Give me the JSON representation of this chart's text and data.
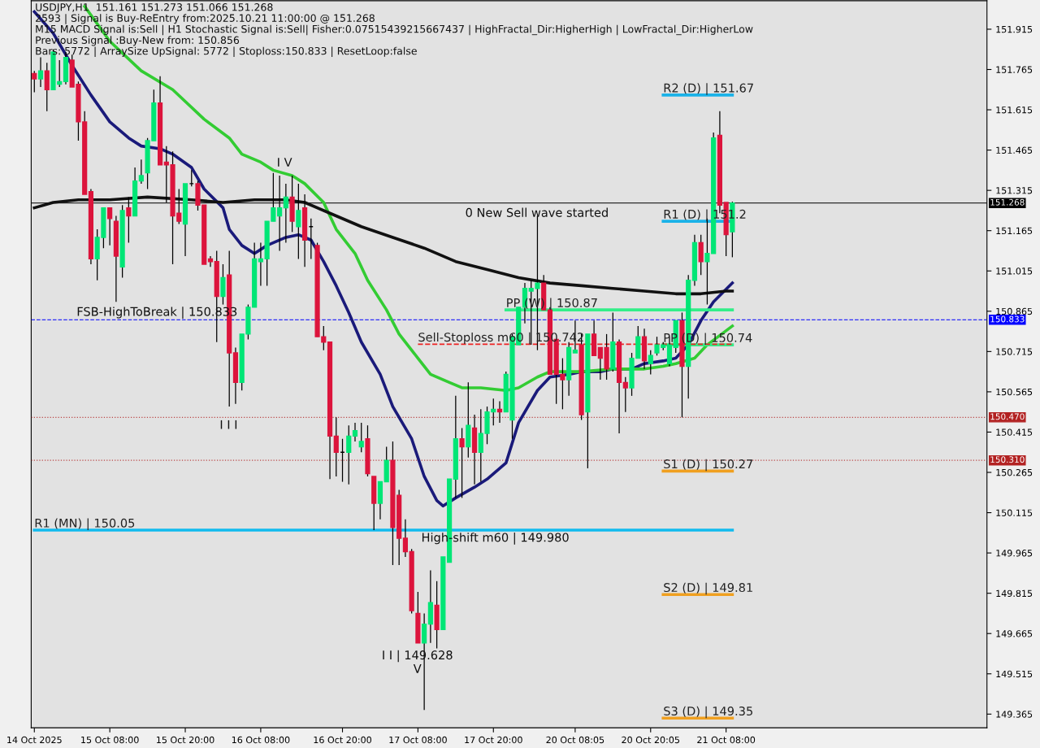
{
  "chart_data": {
    "type": "candlestick",
    "categories": [
      "14 Oct 2025",
      null,
      null,
      null,
      null,
      null,
      null,
      null,
      null,
      null,
      null,
      null,
      "15 Oct 08:00",
      null,
      null,
      null,
      null,
      null,
      null,
      null,
      null,
      null,
      null,
      null,
      "15 Oct 20:00",
      null,
      null,
      null,
      null,
      null,
      null,
      null,
      null,
      null,
      null,
      null,
      "16 Oct 08:00",
      null,
      null,
      null,
      null,
      null,
      null,
      null,
      null,
      null,
      null,
      null,
      null,
      "16 Oct 20:00",
      null,
      null,
      null,
      null,
      null,
      null,
      null,
      null,
      null,
      null,
      null,
      "17 Oct 08:00",
      null,
      null,
      null,
      null,
      null,
      null,
      null,
      null,
      null,
      null,
      null,
      "17 Oct 20:00",
      null,
      null,
      null,
      null,
      null,
      null,
      null,
      null,
      null,
      null,
      null,
      null,
      "20 Oct 08:05",
      null,
      null,
      null,
      null,
      null,
      null,
      null,
      null,
      null,
      null,
      null,
      "20 Oct 20:05",
      null,
      null,
      null,
      null,
      null,
      null,
      null,
      null,
      null,
      null,
      null,
      "21 Oct 08:00",
      null
    ],
    "ohlc": [
      [
        151.75,
        151.76,
        151.68,
        151.73
      ],
      [
        151.73,
        151.81,
        151.7,
        151.76
      ],
      [
        151.76,
        151.79,
        151.61,
        151.69
      ],
      [
        151.69,
        151.84,
        151.69,
        151.83
      ],
      [
        151.71,
        151.8,
        151.7,
        151.72
      ],
      [
        151.72,
        151.83,
        151.71,
        151.81
      ],
      [
        151.8,
        151.82,
        151.7,
        151.7
      ],
      [
        151.71,
        151.72,
        151.5,
        151.57
      ],
      [
        151.57,
        151.61,
        151.3,
        151.3
      ],
      [
        151.31,
        151.32,
        151.04,
        151.06
      ],
      [
        151.06,
        151.17,
        150.98,
        151.14
      ],
      [
        151.14,
        151.25,
        151.1,
        151.25
      ],
      [
        151.25,
        151.25,
        151.11,
        151.21
      ],
      [
        151.2,
        151.22,
        150.9,
        151.07
      ],
      [
        151.03,
        151.26,
        150.99,
        151.24
      ],
      [
        151.25,
        151.29,
        151.12,
        151.22
      ],
      [
        151.22,
        151.4,
        151.22,
        151.35
      ],
      [
        151.35,
        151.43,
        151.34,
        151.37
      ],
      [
        151.38,
        151.51,
        151.32,
        151.5
      ],
      [
        151.5,
        151.69,
        151.5,
        151.64
      ],
      [
        151.64,
        151.74,
        151.41,
        151.41
      ],
      [
        151.42,
        151.48,
        151.27,
        151.41
      ],
      [
        151.41,
        151.46,
        151.04,
        151.22
      ],
      [
        151.23,
        151.32,
        151.19,
        151.2
      ],
      [
        151.19,
        151.34,
        151.07,
        151.34
      ],
      [
        151.34,
        151.39,
        151.33,
        151.34
      ],
      [
        151.34,
        151.35,
        151.24,
        151.26
      ],
      [
        151.26,
        151.26,
        151.04,
        151.04
      ],
      [
        151.06,
        151.07,
        151.03,
        151.05
      ],
      [
        151.05,
        151.09,
        150.75,
        150.92
      ],
      [
        150.92,
        151.04,
        150.89,
        150.99
      ],
      [
        151.0,
        151.09,
        150.51,
        150.71
      ],
      [
        150.71,
        150.73,
        150.52,
        150.6
      ],
      [
        150.6,
        150.78,
        150.57,
        150.78
      ],
      [
        150.78,
        150.89,
        150.76,
        150.88
      ],
      [
        150.88,
        151.12,
        150.88,
        151.06
      ],
      [
        151.05,
        151.12,
        150.96,
        151.06
      ],
      [
        151.06,
        151.2,
        150.96,
        151.2
      ],
      [
        151.2,
        151.38,
        151.2,
        151.25
      ],
      [
        151.22,
        151.37,
        151.09,
        151.25
      ],
      [
        151.25,
        151.34,
        151.12,
        151.29
      ],
      [
        151.29,
        151.37,
        151.16,
        151.2
      ],
      [
        151.18,
        151.34,
        151.06,
        151.24
      ],
      [
        151.25,
        151.3,
        151.03,
        151.13
      ],
      [
        151.18,
        151.21,
        151.06,
        151.18
      ],
      [
        151.11,
        151.12,
        150.77,
        150.77
      ],
      [
        150.77,
        150.81,
        150.72,
        150.75
      ],
      [
        150.75,
        150.75,
        150.24,
        150.4
      ],
      [
        150.4,
        150.47,
        150.25,
        150.34
      ],
      [
        150.34,
        150.39,
        150.23,
        150.34
      ],
      [
        150.34,
        150.44,
        150.22,
        150.4
      ],
      [
        150.4,
        150.45,
        150.38,
        150.42
      ],
      [
        150.36,
        150.45,
        150.34,
        150.38
      ],
      [
        150.39,
        150.44,
        150.25,
        150.26
      ],
      [
        150.25,
        150.25,
        150.05,
        150.15
      ],
      [
        150.15,
        150.23,
        150.09,
        150.23
      ],
      [
        150.23,
        150.36,
        150.23,
        150.31
      ],
      [
        150.31,
        150.38,
        149.92,
        150.06
      ],
      [
        150.18,
        150.2,
        149.92,
        150.02
      ],
      [
        150.02,
        150.09,
        149.95,
        149.97
      ],
      [
        149.97,
        149.98,
        149.74,
        149.75
      ],
      [
        149.74,
        149.82,
        149.63,
        149.63
      ],
      [
        149.63,
        149.74,
        149.38,
        149.7
      ],
      [
        149.7,
        149.9,
        149.63,
        149.78
      ],
      [
        149.77,
        149.86,
        149.61,
        149.68
      ],
      [
        149.68,
        149.95,
        149.68,
        149.95
      ],
      [
        149.93,
        150.24,
        149.93,
        150.24
      ],
      [
        150.24,
        150.55,
        150.17,
        150.39
      ],
      [
        150.39,
        150.43,
        150.17,
        150.36
      ],
      [
        150.36,
        150.6,
        150.32,
        150.44
      ],
      [
        150.43,
        150.48,
        150.22,
        150.34
      ],
      [
        150.34,
        150.5,
        150.23,
        150.41
      ],
      [
        150.41,
        150.51,
        150.37,
        150.49
      ],
      [
        150.49,
        150.54,
        150.44,
        150.5
      ],
      [
        150.5,
        150.53,
        150.45,
        150.49
      ],
      [
        150.49,
        150.64,
        150.49,
        150.63
      ],
      [
        150.46,
        150.78,
        150.39,
        150.77
      ],
      [
        150.74,
        150.88,
        150.74,
        150.88
      ],
      [
        150.88,
        150.97,
        150.82,
        150.95
      ],
      [
        150.94,
        150.98,
        150.74,
        150.95
      ],
      [
        150.95,
        151.22,
        150.72,
        150.97
      ],
      [
        150.97,
        151.0,
        150.87,
        150.87
      ],
      [
        150.87,
        150.88,
        150.63,
        150.63
      ],
      [
        150.76,
        150.76,
        150.52,
        150.63
      ],
      [
        150.63,
        150.69,
        150.5,
        150.61
      ],
      [
        150.61,
        150.75,
        150.55,
        150.73
      ],
      [
        150.71,
        150.83,
        150.71,
        150.72
      ],
      [
        150.74,
        150.78,
        150.46,
        150.48
      ],
      [
        150.49,
        150.78,
        150.28,
        150.78
      ],
      [
        150.78,
        150.83,
        150.7,
        150.7
      ],
      [
        150.73,
        150.73,
        150.61,
        150.69
      ],
      [
        150.73,
        150.78,
        150.61,
        150.65
      ],
      [
        150.65,
        150.86,
        150.64,
        150.75
      ],
      [
        150.75,
        150.76,
        150.41,
        150.6
      ],
      [
        150.6,
        150.62,
        150.49,
        150.58
      ],
      [
        150.58,
        150.71,
        150.55,
        150.69
      ],
      [
        150.69,
        150.81,
        150.69,
        150.77
      ],
      [
        150.77,
        150.8,
        150.65,
        150.68
      ],
      [
        150.67,
        150.72,
        150.63,
        150.7
      ],
      [
        150.71,
        150.77,
        150.7,
        150.74
      ],
      [
        150.73,
        150.75,
        150.72,
        150.74
      ],
      [
        150.67,
        150.77,
        150.66,
        150.74
      ],
      [
        150.73,
        150.83,
        150.71,
        150.83
      ],
      [
        150.83,
        150.86,
        150.47,
        150.66
      ],
      [
        150.66,
        151.0,
        150.54,
        150.98
      ],
      [
        150.98,
        151.15,
        150.96,
        151.12
      ],
      [
        151.12,
        151.15,
        151.0,
        151.05
      ],
      [
        151.05,
        151.21,
        150.89,
        151.08
      ],
      [
        151.08,
        151.53,
        151.08,
        151.51
      ],
      [
        151.52,
        151.61,
        151.23,
        151.26
      ],
      [
        151.27,
        151.27,
        151.07,
        151.15
      ],
      [
        151.161,
        151.273,
        151.066,
        151.268
      ]
    ],
    "colors": [
      "#dc143c",
      "#00e676",
      "#dc143c",
      "#00e676",
      "#00e676",
      "#00e676",
      "#dc143c",
      "#dc143c",
      "#dc143c",
      "#dc143c",
      "#00e676",
      "#00e676",
      "#dc143c",
      "#dc143c",
      "#00e676",
      "#dc143c",
      "#00e676",
      "#00e676",
      "#00e676",
      "#00e676",
      "#dc143c",
      "#dc143c",
      "#dc143c",
      "#dc143c",
      "#00e676",
      "#000000",
      "#dc143c",
      "#dc143c",
      "#dc143c",
      "#dc143c",
      "#00e676",
      "#dc143c",
      "#dc143c",
      "#00e676",
      "#00e676",
      "#00e676",
      "#00e676",
      "#00e676",
      "#00e676",
      "#00e676",
      "#00e676",
      "#dc143c",
      "#00e676",
      "#dc143c",
      "#000000",
      "#dc143c",
      "#dc143c",
      "#dc143c",
      "#dc143c",
      "#000000",
      "#00e676",
      "#00e676",
      "#00e676",
      "#dc143c",
      "#dc143c",
      "#00e676",
      "#00e676",
      "#dc143c",
      "#dc143c",
      "#dc143c",
      "#dc143c",
      "#dc143c",
      "#00e676",
      "#00e676",
      "#dc143c",
      "#00e676",
      "#00e676",
      "#00e676",
      "#dc143c",
      "#00e676",
      "#dc143c",
      "#00e676",
      "#00e676",
      "#00e676",
      "#dc143c",
      "#00e676",
      "#00e676",
      "#00e676",
      "#00e676",
      "#00e676",
      "#00e676",
      "#dc143c",
      "#dc143c",
      "#dc143c",
      "#dc143c",
      "#00e676",
      "#00e676",
      "#dc143c",
      "#00e676",
      "#dc143c",
      "#dc143c",
      "#dc143c",
      "#00e676",
      "#dc143c",
      "#dc143c",
      "#00e676",
      "#00e676",
      "#dc143c",
      "#00e676",
      "#00e676",
      "#00e676",
      "#00e676",
      "#00e676",
      "#dc143c",
      "#00e676",
      "#00e676",
      "#dc143c",
      "#00e676",
      "#00e676",
      "#dc143c",
      "#dc143c",
      "#00e676"
    ],
    "series": [
      {
        "type": "line",
        "color": "#1a1a7a",
        "values": [
          151.98,
          null,
          null,
          151.9,
          null,
          null,
          151.78,
          null,
          null,
          151.67,
          null,
          null,
          151.57,
          null,
          null,
          151.51,
          null,
          151.48,
          null,
          null,
          151.47,
          null,
          151.45,
          null,
          null,
          151.4,
          null,
          151.32,
          null,
          null,
          151.25,
          151.17,
          null,
          151.11,
          null,
          151.08,
          null,
          151.11,
          null,
          null,
          151.14,
          null,
          151.15,
          null,
          151.13,
          null,
          151.05,
          null,
          150.96,
          null,
          150.86,
          null,
          150.75,
          null,
          null,
          150.63,
          null,
          150.51,
          null,
          null,
          150.39,
          null,
          150.25,
          null,
          150.16,
          150.14,
          null,
          150.17,
          null,
          null,
          150.21,
          null,
          150.24,
          null,
          null,
          150.3,
          null,
          150.45,
          null,
          null,
          150.57,
          null,
          150.62,
          null,
          null,
          150.63,
          null,
          150.64,
          null,
          null,
          150.64,
          null,
          150.65,
          null,
          null,
          150.65,
          null,
          150.67,
          null,
          null,
          150.68,
          null,
          150.69,
          null,
          150.74,
          null,
          150.83,
          null,
          150.9,
          null,
          null,
          150.97
        ]
      },
      {
        "type": "line",
        "color": "#33cc33",
        "values": [
          null,
          null,
          null,
          null,
          null,
          null,
          null,
          null,
          152.0,
          null,
          null,
          null,
          151.87,
          null,
          null,
          null,
          null,
          151.76,
          null,
          null,
          null,
          null,
          151.69,
          null,
          null,
          null,
          null,
          151.58,
          null,
          null,
          null,
          151.51,
          null,
          151.45,
          null,
          null,
          151.42,
          null,
          151.39,
          null,
          null,
          151.37,
          null,
          151.34,
          null,
          null,
          151.27,
          null,
          151.17,
          null,
          null,
          151.08,
          null,
          150.98,
          null,
          null,
          150.87,
          null,
          150.78,
          null,
          null,
          150.69,
          null,
          150.63,
          null,
          null,
          150.6,
          null,
          150.58,
          null,
          null,
          150.58,
          null,
          null,
          null,
          150.57,
          null,
          150.58,
          null,
          null,
          150.62,
          null,
          150.64,
          null,
          null,
          null,
          null,
          150.64,
          null,
          null,
          null,
          null,
          150.65,
          null,
          null,
          null,
          null,
          150.65,
          null,
          null,
          150.66,
          null,
          150.67,
          null,
          null,
          150.69,
          null,
          150.74,
          null,
          null,
          null,
          150.81
        ]
      },
      {
        "type": "line",
        "color": "#111111",
        "values": [
          151.25,
          null,
          null,
          151.27,
          null,
          null,
          null,
          151.28,
          null,
          null,
          null,
          null,
          151.28,
          null,
          null,
          null,
          null,
          null,
          151.29,
          null,
          null,
          null,
          null,
          null,
          null,
          151.28,
          null,
          null,
          null,
          null,
          151.27,
          null,
          null,
          null,
          null,
          151.28,
          null,
          null,
          null,
          null,
          151.28,
          null,
          null,
          151.27,
          null,
          null,
          null,
          151.23,
          null,
          null,
          null,
          null,
          151.18,
          null,
          null,
          null,
          null,
          151.14,
          null,
          null,
          null,
          null,
          151.1,
          null,
          null,
          null,
          null,
          151.05,
          null,
          null,
          null,
          null,
          151.02,
          null,
          null,
          null,
          null,
          150.99,
          null,
          null,
          null,
          null,
          150.97,
          null,
          null,
          null,
          null,
          150.96,
          null,
          null,
          null,
          null,
          150.95,
          null,
          null,
          null,
          null,
          150.94,
          null,
          null,
          null,
          null,
          150.93,
          null,
          null,
          null,
          150.93,
          null,
          null,
          null,
          150.94,
          150.94
        ]
      },
      {
        "type": "line",
        "name": "R2 (D) | 151.67",
        "color": "#1ab2e8",
        "values": [
          null,
          null,
          null,
          null,
          null,
          null,
          null,
          null,
          null,
          null,
          null,
          null,
          null,
          null,
          null,
          null,
          null,
          null,
          null,
          null,
          null,
          null,
          null,
          null,
          null,
          null,
          null,
          null,
          null,
          null,
          null,
          null,
          null,
          null,
          null,
          null,
          null,
          null,
          null,
          null,
          null,
          null,
          null,
          null,
          null,
          null,
          null,
          null,
          null,
          null,
          null,
          null,
          null,
          null,
          null,
          null,
          null,
          null,
          null,
          null,
          null,
          null,
          null,
          null,
          null,
          null,
          null,
          null,
          null,
          null,
          null,
          null,
          null,
          null,
          null,
          null,
          null,
          null,
          null,
          null,
          null,
          null,
          null,
          null,
          null,
          null,
          null,
          null,
          null,
          null,
          null,
          null,
          null,
          null,
          null,
          null,
          null,
          null,
          null,
          null,
          151.67,
          151.67,
          151.67,
          151.67,
          151.67,
          151.67,
          151.67,
          151.67,
          151.67,
          151.67,
          151.67,
          151.67
        ]
      },
      {
        "type": "line",
        "name": "R1 (D) | 151.2",
        "color": "#1ab2e8",
        "values": [
          null,
          null,
          null,
          null,
          null,
          null,
          null,
          null,
          null,
          null,
          null,
          null,
          null,
          null,
          null,
          null,
          null,
          null,
          null,
          null,
          null,
          null,
          null,
          null,
          null,
          null,
          null,
          null,
          null,
          null,
          null,
          null,
          null,
          null,
          null,
          null,
          null,
          null,
          null,
          null,
          null,
          null,
          null,
          null,
          null,
          null,
          null,
          null,
          null,
          null,
          null,
          null,
          null,
          null,
          null,
          null,
          null,
          null,
          null,
          null,
          null,
          null,
          null,
          null,
          null,
          null,
          null,
          null,
          null,
          null,
          null,
          null,
          null,
          null,
          null,
          null,
          null,
          null,
          null,
          null,
          null,
          null,
          null,
          null,
          null,
          null,
          null,
          null,
          null,
          null,
          null,
          null,
          null,
          null,
          null,
          null,
          null,
          null,
          null,
          null,
          151.2,
          151.2,
          151.2,
          151.2,
          151.2,
          151.2,
          151.2,
          151.2,
          151.2,
          151.2,
          151.2,
          151.2
        ]
      },
      {
        "type": "line",
        "name": "PP (D) | 150.74",
        "color": "#33ee88",
        "values": [
          null,
          null,
          null,
          null,
          null,
          null,
          null,
          null,
          null,
          null,
          null,
          null,
          null,
          null,
          null,
          null,
          null,
          null,
          null,
          null,
          null,
          null,
          null,
          null,
          null,
          null,
          null,
          null,
          null,
          null,
          null,
          null,
          null,
          null,
          null,
          null,
          null,
          null,
          null,
          null,
          null,
          null,
          null,
          null,
          null,
          null,
          null,
          null,
          null,
          null,
          null,
          null,
          null,
          null,
          null,
          null,
          null,
          null,
          null,
          null,
          null,
          null,
          null,
          null,
          null,
          null,
          null,
          null,
          null,
          null,
          null,
          null,
          null,
          null,
          null,
          null,
          null,
          null,
          null,
          null,
          null,
          null,
          null,
          null,
          null,
          null,
          null,
          null,
          null,
          null,
          null,
          null,
          null,
          null,
          null,
          null,
          null,
          null,
          null,
          null,
          150.74,
          150.74,
          150.74,
          150.74,
          150.74,
          150.74,
          150.74,
          150.74,
          150.74,
          150.74,
          150.74,
          150.74
        ]
      },
      {
        "type": "line",
        "name": "S1 (D) | 150.27",
        "color": "#f0a020",
        "values": [
          null,
          null,
          null,
          null,
          null,
          null,
          null,
          null,
          null,
          null,
          null,
          null,
          null,
          null,
          null,
          null,
          null,
          null,
          null,
          null,
          null,
          null,
          null,
          null,
          null,
          null,
          null,
          null,
          null,
          null,
          null,
          null,
          null,
          null,
          null,
          null,
          null,
          null,
          null,
          null,
          null,
          null,
          null,
          null,
          null,
          null,
          null,
          null,
          null,
          null,
          null,
          null,
          null,
          null,
          null,
          null,
          null,
          null,
          null,
          null,
          null,
          null,
          null,
          null,
          null,
          null,
          null,
          null,
          null,
          null,
          null,
          null,
          null,
          null,
          null,
          null,
          null,
          null,
          null,
          null,
          null,
          null,
          null,
          null,
          null,
          null,
          null,
          null,
          null,
          null,
          null,
          null,
          null,
          null,
          null,
          null,
          null,
          null,
          null,
          null,
          150.27,
          150.27,
          150.27,
          150.27,
          150.27,
          150.27,
          150.27,
          150.27,
          150.27,
          150.27,
          150.27,
          150.27
        ]
      },
      {
        "type": "line",
        "name": "S2 (D) | 149.81",
        "color": "#f0a020",
        "values": [
          null,
          null,
          null,
          null,
          null,
          null,
          null,
          null,
          null,
          null,
          null,
          null,
          null,
          null,
          null,
          null,
          null,
          null,
          null,
          null,
          null,
          null,
          null,
          null,
          null,
          null,
          null,
          null,
          null,
          null,
          null,
          null,
          null,
          null,
          null,
          null,
          null,
          null,
          null,
          null,
          null,
          null,
          null,
          null,
          null,
          null,
          null,
          null,
          null,
          null,
          null,
          null,
          null,
          null,
          null,
          null,
          null,
          null,
          null,
          null,
          null,
          null,
          null,
          null,
          null,
          null,
          null,
          null,
          null,
          null,
          null,
          null,
          null,
          null,
          null,
          null,
          null,
          null,
          null,
          null,
          null,
          null,
          null,
          null,
          null,
          null,
          null,
          null,
          null,
          null,
          null,
          null,
          null,
          null,
          null,
          null,
          null,
          null,
          null,
          null,
          149.81,
          149.81,
          149.81,
          149.81,
          149.81,
          149.81,
          149.81,
          149.81,
          149.81,
          149.81,
          149.81,
          149.81
        ]
      },
      {
        "type": "line",
        "name": "S3 (D) | 149.35",
        "color": "#f0a020",
        "values": [
          null,
          null,
          null,
          null,
          null,
          null,
          null,
          null,
          null,
          null,
          null,
          null,
          null,
          null,
          null,
          null,
          null,
          null,
          null,
          null,
          null,
          null,
          null,
          null,
          null,
          null,
          null,
          null,
          null,
          null,
          null,
          null,
          null,
          null,
          null,
          null,
          null,
          null,
          null,
          null,
          null,
          null,
          null,
          null,
          null,
          null,
          null,
          null,
          null,
          null,
          null,
          null,
          null,
          null,
          null,
          null,
          null,
          null,
          null,
          null,
          null,
          null,
          null,
          null,
          null,
          null,
          null,
          null,
          null,
          null,
          null,
          null,
          null,
          null,
          null,
          null,
          null,
          null,
          null,
          null,
          null,
          null,
          null,
          null,
          null,
          null,
          null,
          null,
          null,
          null,
          null,
          null,
          null,
          null,
          null,
          null,
          null,
          null,
          null,
          null,
          149.35,
          149.35,
          149.35,
          149.35,
          149.35,
          149.35,
          149.35,
          149.35,
          149.35,
          149.35,
          149.35,
          149.35
        ]
      },
      {
        "type": "line",
        "name": "PP (W) | 150.87",
        "color": "#33ee88",
        "values": [
          null,
          null,
          null,
          null,
          null,
          null,
          null,
          null,
          null,
          null,
          null,
          null,
          null,
          null,
          null,
          null,
          null,
          null,
          null,
          null,
          null,
          null,
          null,
          null,
          null,
          null,
          null,
          null,
          null,
          null,
          null,
          null,
          null,
          null,
          null,
          null,
          null,
          null,
          null,
          null,
          null,
          null,
          null,
          null,
          null,
          null,
          null,
          null,
          null,
          null,
          null,
          null,
          null,
          null,
          null,
          null,
          null,
          null,
          null,
          null,
          null,
          null,
          null,
          null,
          null,
          null,
          null,
          null,
          null,
          null,
          null,
          null,
          null,
          null,
          null,
          150.87,
          150.87,
          150.87,
          150.87,
          150.87,
          150.87,
          150.87,
          150.87,
          150.87,
          150.87,
          150.87,
          150.87,
          150.87,
          150.87,
          150.87,
          150.87,
          150.87,
          150.87,
          150.87,
          150.87,
          150.87,
          150.87,
          150.87,
          150.87,
          150.87,
          150.87,
          150.87,
          150.87,
          150.87,
          150.87,
          150.87,
          150.87,
          150.87,
          150.87,
          150.87,
          150.87,
          150.87
        ]
      },
      {
        "type": "line",
        "name": "R1 (MN) | 150.05",
        "color": "#11bbee",
        "values": [
          150.05,
          150.05,
          150.05,
          150.05,
          150.05,
          150.05,
          150.05,
          150.05,
          150.05,
          150.05,
          150.05,
          150.05,
          150.05,
          150.05,
          150.05,
          150.05,
          150.05,
          150.05,
          150.05,
          150.05,
          150.05,
          150.05,
          150.05,
          150.05,
          150.05,
          150.05,
          150.05,
          150.05,
          150.05,
          150.05,
          150.05,
          150.05,
          150.05,
          150.05,
          150.05,
          150.05,
          150.05,
          150.05,
          150.05,
          150.05,
          150.05,
          150.05,
          150.05,
          150.05,
          150.05,
          150.05,
          150.05,
          150.05,
          150.05,
          150.05,
          150.05,
          150.05,
          150.05,
          150.05,
          150.05,
          150.05,
          150.05,
          150.05,
          150.05,
          150.05,
          150.05,
          150.05,
          150.05,
          150.05,
          150.05,
          150.05,
          150.05,
          150.05,
          150.05,
          150.05,
          150.05,
          150.05,
          150.05,
          150.05,
          150.05,
          150.05,
          150.05,
          150.05,
          150.05,
          150.05,
          150.05,
          150.05,
          150.05,
          150.05,
          150.05,
          150.05,
          150.05,
          150.05,
          150.05,
          150.05,
          150.05,
          150.05,
          150.05,
          150.05,
          150.05,
          150.05,
          150.05,
          150.05,
          150.05,
          150.05,
          150.05,
          150.05,
          150.05,
          150.05,
          150.05,
          150.05,
          150.05,
          150.05,
          150.05,
          150.05,
          150.05,
          150.05
        ]
      },
      {
        "type": "line",
        "name": "Sell-Stoploss m60 | 150.742",
        "color": "#ee2222",
        "line_style": "dashed",
        "values": [
          null,
          null,
          null,
          null,
          null,
          null,
          null,
          null,
          null,
          null,
          null,
          null,
          null,
          null,
          null,
          null,
          null,
          null,
          null,
          null,
          null,
          null,
          null,
          null,
          null,
          null,
          null,
          null,
          null,
          null,
          null,
          null,
          null,
          null,
          null,
          null,
          null,
          null,
          null,
          null,
          null,
          null,
          null,
          null,
          null,
          null,
          null,
          null,
          null,
          null,
          null,
          null,
          null,
          null,
          null,
          null,
          null,
          null,
          null,
          null,
          null,
          150.742,
          150.742,
          150.742,
          150.742,
          150.742,
          150.742,
          150.742,
          150.742,
          150.742,
          150.742,
          150.742,
          150.742,
          150.742,
          150.742,
          150.742,
          150.742,
          150.742,
          150.742,
          150.742,
          150.742,
          150.742,
          150.742,
          150.742,
          150.742,
          150.742,
          150.742,
          150.742,
          150.742,
          150.742,
          150.742,
          150.742,
          150.742,
          150.742,
          150.742,
          150.742,
          150.742,
          150.742,
          150.742,
          150.742,
          150.742,
          150.742,
          150.742,
          150.742,
          150.742,
          150.742,
          150.742,
          150.742,
          150.742,
          150.742,
          150.742,
          150.742
        ]
      }
    ],
    "ylim": [
      149.314,
      152.021
    ],
    "yticks": [
      149.365,
      149.515,
      149.665,
      149.815,
      149.965,
      150.115,
      150.265,
      150.415,
      150.565,
      150.715,
      150.865,
      151.015,
      151.165,
      151.315,
      151.465,
      151.615,
      151.765,
      151.915
    ],
    "ref_lines": [
      {
        "axis": "y",
        "value": 151.268,
        "label": "151.268",
        "color": "#000000"
      },
      {
        "axis": "y",
        "value": 150.833,
        "label": "150.833",
        "color": "#0000ff",
        "line_style": "dashed"
      },
      {
        "axis": "y",
        "value": 150.47,
        "label": "150.470",
        "color": "#b22222",
        "line_style": "dotted"
      },
      {
        "axis": "y",
        "value": 150.31,
        "label": "150.310",
        "color": "#b22222",
        "line_style": "dotted"
      }
    ],
    "annotations": [
      "USDJPY,H1  151.161 151.273 151.066 151.268",
      "2593 | Signal is Buy-ReEntry from:2025.10.21 11:00:00 @ 151.268",
      "M15 MACD Signal is:Sell | H1 Stochastic Signal is:Sell| Fisher:0.07515439215667437 | HighFractal_Dir:HigherHigh | LowFractal_Dir:HigherLow",
      "Previous Signal :Buy-New from: 150.856",
      "Bars: 5772 | ArraySize UpSignal: 5772 | Stoploss:150.833 | ResetLoop:false",
      "I V",
      "I I I",
      "I I | 149.628",
      "V",
      "0 New Sell wave started",
      "FSB-HighToBreak | 150.833",
      "High-shift m60 | 149.980"
    ],
    "grid": false
  }
}
